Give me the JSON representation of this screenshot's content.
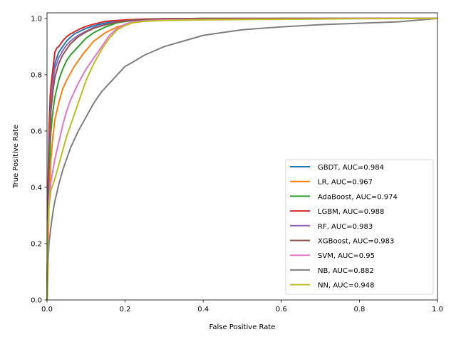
{
  "chart_data": {
    "type": "line",
    "title": "",
    "xlabel": "False Positive Rate",
    "ylabel": "True Positive Rate",
    "xlim": [
      0,
      1
    ],
    "ylim": [
      0,
      1.02
    ],
    "x_ticks": [
      "0.0",
      "0.2",
      "0.4",
      "0.6",
      "0.8",
      "1.0"
    ],
    "y_ticks": [
      "0.0",
      "0.2",
      "0.4",
      "0.6",
      "0.8",
      "1.0"
    ],
    "grid": false,
    "legend_position": "lower-right",
    "series": [
      {
        "name": "GBDT, AUC=0.984",
        "color": "#1f77b4",
        "x": [
          0,
          0.002,
          0.005,
          0.01,
          0.015,
          0.02,
          0.03,
          0.04,
          0.05,
          0.07,
          0.1,
          0.13,
          0.16,
          0.2,
          0.25,
          0.3,
          0.4,
          0.6,
          0.8,
          1.0
        ],
        "y": [
          0,
          0.3,
          0.55,
          0.7,
          0.78,
          0.84,
          0.88,
          0.9,
          0.92,
          0.945,
          0.965,
          0.978,
          0.987,
          0.993,
          0.996,
          0.998,
          0.999,
          1.0,
          1.0,
          1.0
        ]
      },
      {
        "name": "LR, AUC=0.967",
        "color": "#ff7f0e",
        "x": [
          0,
          0.002,
          0.005,
          0.01,
          0.015,
          0.02,
          0.03,
          0.04,
          0.05,
          0.07,
          0.09,
          0.12,
          0.15,
          0.18,
          0.22,
          0.26,
          0.3,
          0.4,
          0.6,
          0.8,
          1.0
        ],
        "y": [
          0,
          0.08,
          0.35,
          0.5,
          0.58,
          0.64,
          0.7,
          0.75,
          0.78,
          0.83,
          0.87,
          0.92,
          0.95,
          0.97,
          0.985,
          0.992,
          0.996,
          0.998,
          1.0,
          1.0,
          1.0
        ]
      },
      {
        "name": "AdaBoost, AUC=0.974",
        "color": "#2ca02c",
        "x": [
          0,
          0.002,
          0.005,
          0.01,
          0.015,
          0.02,
          0.03,
          0.04,
          0.05,
          0.06,
          0.08,
          0.1,
          0.12,
          0.15,
          0.18,
          0.22,
          0.26,
          0.3,
          0.4,
          0.6,
          0.8,
          1.0
        ],
        "y": [
          0,
          0.25,
          0.45,
          0.6,
          0.67,
          0.72,
          0.78,
          0.82,
          0.85,
          0.87,
          0.9,
          0.93,
          0.95,
          0.97,
          0.985,
          0.993,
          0.997,
          0.999,
          1.0,
          1.0,
          1.0,
          1.0
        ]
      },
      {
        "name": "LGBM, AUC=0.988",
        "color": "#d62728",
        "x": [
          0,
          0.002,
          0.005,
          0.008,
          0.01,
          0.015,
          0.02,
          0.025,
          0.03,
          0.04,
          0.05,
          0.06,
          0.08,
          0.1,
          0.12,
          0.15,
          0.2,
          0.25,
          0.3,
          0.4,
          0.6,
          0.8,
          1.0
        ],
        "y": [
          0,
          0.35,
          0.6,
          0.72,
          0.76,
          0.82,
          0.88,
          0.895,
          0.9,
          0.92,
          0.935,
          0.945,
          0.96,
          0.972,
          0.98,
          0.99,
          0.995,
          0.998,
          0.999,
          1.0,
          1.0,
          1.0,
          1.0
        ]
      },
      {
        "name": "RF, AUC=0.983",
        "color": "#9467bd",
        "x": [
          0,
          0.002,
          0.005,
          0.01,
          0.015,
          0.02,
          0.03,
          0.04,
          0.05,
          0.06,
          0.08,
          0.1,
          0.12,
          0.15,
          0.18,
          0.22,
          0.26,
          0.3,
          0.4,
          0.6,
          0.8,
          1.0
        ],
        "y": [
          0,
          0.3,
          0.55,
          0.7,
          0.77,
          0.82,
          0.86,
          0.885,
          0.905,
          0.92,
          0.94,
          0.955,
          0.968,
          0.98,
          0.988,
          0.994,
          0.997,
          0.999,
          1.0,
          1.0,
          1.0,
          1.0
        ]
      },
      {
        "name": "XGBoost, AUC=0.983",
        "color": "#8c564b",
        "x": [
          0,
          0.002,
          0.005,
          0.01,
          0.015,
          0.02,
          0.03,
          0.04,
          0.05,
          0.06,
          0.08,
          0.1,
          0.12,
          0.15,
          0.18,
          0.22,
          0.26,
          0.3,
          0.4,
          0.6,
          0.8,
          1.0
        ],
        "y": [
          0,
          0.3,
          0.52,
          0.67,
          0.74,
          0.79,
          0.84,
          0.87,
          0.89,
          0.91,
          0.935,
          0.952,
          0.965,
          0.978,
          0.987,
          0.994,
          0.997,
          0.999,
          1.0,
          1.0,
          1.0,
          1.0
        ]
      },
      {
        "name": "SVM, AUC=0.95",
        "color": "#e377c2",
        "x": [
          0,
          0.002,
          0.005,
          0.01,
          0.015,
          0.02,
          0.03,
          0.04,
          0.05,
          0.06,
          0.08,
          0.1,
          0.12,
          0.14,
          0.16,
          0.18,
          0.2,
          0.22,
          0.25,
          0.3,
          0.4,
          0.6,
          0.8,
          1.0
        ],
        "y": [
          0,
          0.2,
          0.35,
          0.42,
          0.46,
          0.5,
          0.56,
          0.62,
          0.67,
          0.71,
          0.77,
          0.82,
          0.86,
          0.9,
          0.94,
          0.965,
          0.98,
          0.988,
          0.992,
          0.995,
          0.996,
          0.998,
          1.0,
          1.0
        ]
      },
      {
        "name": "NB, AUC=0.882",
        "color": "#7f7f7f",
        "x": [
          0,
          0.002,
          0.005,
          0.01,
          0.015,
          0.02,
          0.03,
          0.04,
          0.05,
          0.06,
          0.08,
          0.1,
          0.12,
          0.14,
          0.16,
          0.18,
          0.2,
          0.22,
          0.25,
          0.3,
          0.35,
          0.4,
          0.45,
          0.5,
          0.6,
          0.7,
          0.8,
          0.9,
          1.0
        ],
        "y": [
          0,
          0.12,
          0.2,
          0.26,
          0.31,
          0.35,
          0.41,
          0.46,
          0.5,
          0.54,
          0.6,
          0.65,
          0.7,
          0.74,
          0.77,
          0.8,
          0.83,
          0.845,
          0.87,
          0.9,
          0.92,
          0.94,
          0.95,
          0.96,
          0.97,
          0.978,
          0.983,
          0.988,
          1.0
        ]
      },
      {
        "name": "NN, AUC=0.948",
        "color": "#bcbd22",
        "x": [
          0,
          0.002,
          0.005,
          0.01,
          0.015,
          0.02,
          0.03,
          0.04,
          0.05,
          0.06,
          0.08,
          0.1,
          0.12,
          0.14,
          0.16,
          0.18,
          0.2,
          0.22,
          0.25,
          0.3,
          0.4,
          0.6,
          0.8,
          1.0
        ],
        "y": [
          0,
          0.25,
          0.33,
          0.39,
          0.41,
          0.43,
          0.48,
          0.53,
          0.58,
          0.62,
          0.7,
          0.78,
          0.84,
          0.89,
          0.93,
          0.96,
          0.975,
          0.985,
          0.99,
          0.993,
          0.995,
          0.997,
          0.999,
          1.0
        ]
      }
    ]
  }
}
